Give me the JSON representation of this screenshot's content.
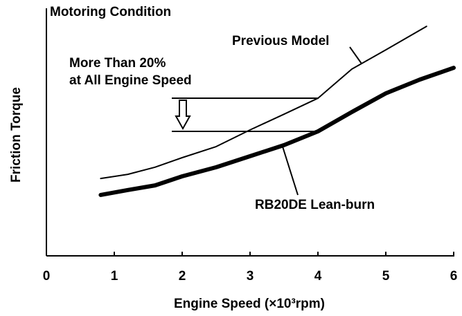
{
  "chart_data": {
    "type": "line",
    "annotations": [
      "Motoring Condition",
      "More Than 20%",
      "at All Engine Speed"
    ],
    "x_label": "Engine Speed (×10³rpm)",
    "y_label": "Friction Torque",
    "xlim": [
      0,
      6
    ],
    "xticks": [
      0,
      1,
      2,
      3,
      4,
      5,
      6
    ],
    "ylim": [
      0,
      100
    ],
    "series": [
      {
        "name": "Previous Model",
        "color": "#000000",
        "width": 2,
        "x": [
          0.8,
          1.2,
          1.6,
          2,
          2.5,
          3,
          3.5,
          4,
          4.5,
          5,
          5.6
        ],
        "values": [
          31.5,
          33.2,
          36.1,
          40,
          44.5,
          51.3,
          57.7,
          64.2,
          76.1,
          83.9,
          93.5
        ]
      },
      {
        "name": "RB20DE Lean-burn",
        "color": "#000000",
        "width": 6,
        "x": [
          0.8,
          1.2,
          1.6,
          2,
          2.5,
          3,
          3.5,
          4,
          4.5,
          5,
          5.5,
          6
        ],
        "values": [
          24.8,
          26.8,
          28.7,
          32.4,
          36.1,
          40.6,
          45.1,
          50.7,
          58.6,
          66.2,
          71.8,
          76.6
        ]
      }
    ]
  }
}
